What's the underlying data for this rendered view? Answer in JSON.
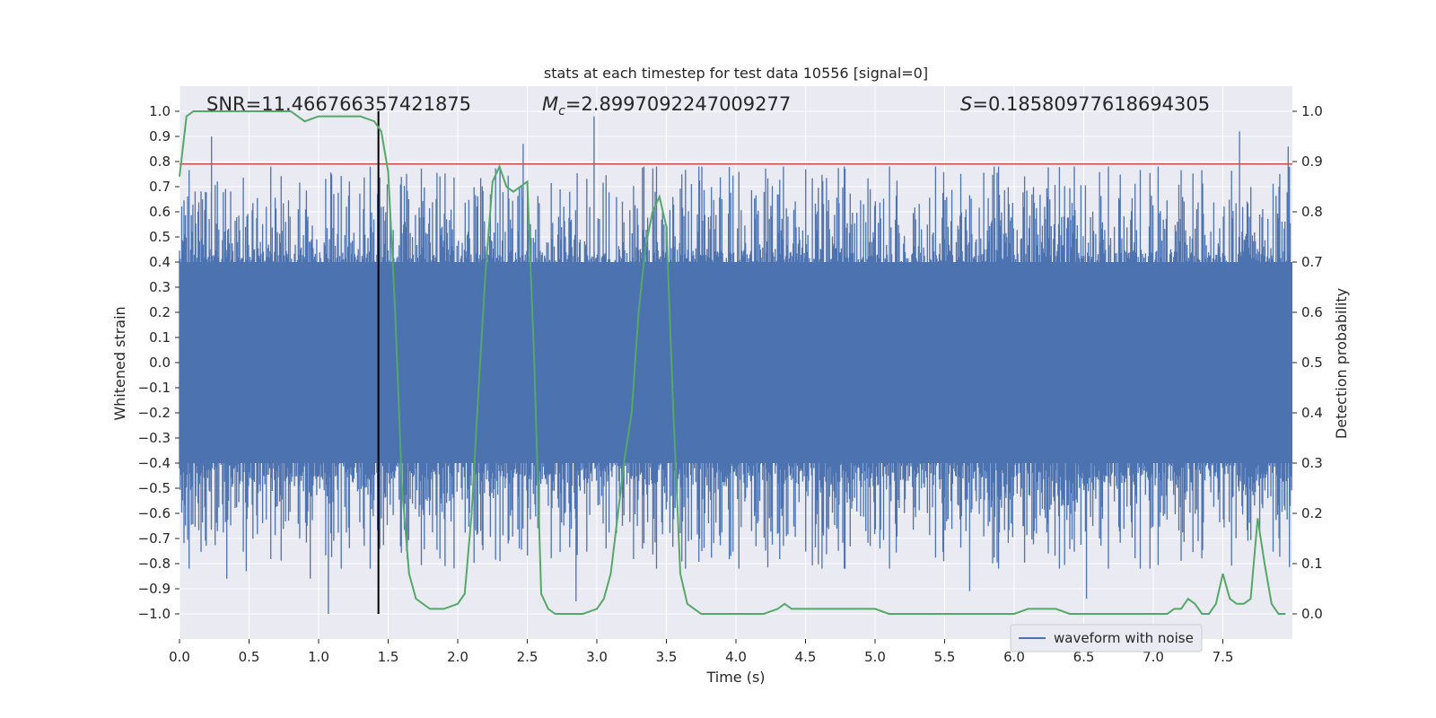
{
  "chart_data": {
    "type": "line",
    "title": "stats at each timestep for test data 10556 [signal=0]",
    "xlabel": "Time (s)",
    "ylabel_left": "Whitened strain",
    "ylabel_right": "Detection probability",
    "xlim": [
      0.0,
      8.0
    ],
    "ylim_left": [
      -1.1,
      1.1
    ],
    "ylim_right": [
      -0.05,
      1.05
    ],
    "grid": true,
    "x_ticks": [
      "0.0",
      "0.5",
      "1.0",
      "1.5",
      "2.0",
      "2.5",
      "3.0",
      "3.5",
      "4.0",
      "4.5",
      "5.0",
      "5.5",
      "6.0",
      "6.5",
      "7.0",
      "7.5"
    ],
    "y_ticks_left": [
      "1.0",
      "0.9",
      "0.8",
      "0.7",
      "0.6",
      "0.5",
      "0.4",
      "0.3",
      "0.2",
      "0.1",
      "0.0",
      "−0.1",
      "−0.2",
      "−0.3",
      "−0.4",
      "−0.5",
      "−0.6",
      "−0.7",
      "−0.8",
      "−0.9",
      "−1.0"
    ],
    "y_ticks_right": [
      "1.0",
      "0.9",
      "0.8",
      "0.7",
      "0.6",
      "0.5",
      "0.4",
      "0.3",
      "0.2",
      "0.1",
      "0.0"
    ],
    "annotations": {
      "snr": "SNR=11.466766357421875",
      "mc_symbol": "M",
      "mc_subscript": "c",
      "mc_value": "=2.8997092247009277",
      "s_symbol": "S",
      "s_value": "=0.18580977618694305"
    },
    "waveform": {
      "name": "waveform with noise",
      "color": "#4c72b0",
      "note_band": [
        -0.4,
        0.4
      ],
      "peaks": [
        {
          "x": 0.23,
          "y": 0.9
        },
        {
          "x": 1.07,
          "y": -1.0
        },
        {
          "x": 2.47,
          "y": 0.87
        },
        {
          "x": 2.98,
          "y": 0.98
        },
        {
          "x": 2.85,
          "y": -0.95
        },
        {
          "x": 7.62,
          "y": 0.92
        },
        {
          "x": 7.97,
          "y": 0.86
        },
        {
          "x": 5.68,
          "y": -0.91
        },
        {
          "x": 6.52,
          "y": -0.94
        },
        {
          "x": 0.34,
          "y": -0.86
        },
        {
          "x": 0.48,
          "y": -0.83
        },
        {
          "x": 0.94,
          "y": -0.86
        }
      ]
    },
    "threshold": {
      "y": 0.79,
      "color": "#c44e52"
    },
    "vertical_marker": {
      "x": 1.43,
      "y_range": [
        -1.0,
        1.0
      ],
      "color": "#000000"
    },
    "probability": {
      "color": "#55a868",
      "x": [
        0.0,
        0.05,
        0.1,
        0.2,
        0.3,
        0.4,
        0.5,
        0.6,
        0.7,
        0.8,
        0.9,
        1.0,
        1.1,
        1.2,
        1.3,
        1.4,
        1.45,
        1.5,
        1.55,
        1.6,
        1.65,
        1.7,
        1.8,
        1.9,
        2.0,
        2.05,
        2.1,
        2.15,
        2.2,
        2.25,
        2.3,
        2.35,
        2.4,
        2.5,
        2.55,
        2.6,
        2.65,
        2.7,
        2.8,
        2.9,
        3.0,
        3.05,
        3.1,
        3.2,
        3.25,
        3.3,
        3.35,
        3.4,
        3.45,
        3.5,
        3.55,
        3.6,
        3.65,
        3.7,
        3.75,
        3.8,
        3.9,
        4.0,
        4.1,
        4.2,
        4.3,
        4.35,
        4.4,
        4.5,
        4.6,
        4.7,
        4.8,
        4.9,
        5.0,
        5.1,
        5.2,
        5.4,
        5.6,
        5.8,
        5.9,
        6.0,
        6.1,
        6.2,
        6.3,
        6.4,
        6.5,
        6.6,
        6.7,
        6.8,
        6.9,
        7.0,
        7.1,
        7.15,
        7.2,
        7.25,
        7.3,
        7.35,
        7.4,
        7.45,
        7.5,
        7.55,
        7.6,
        7.65,
        7.7,
        7.75,
        7.8,
        7.85,
        7.9,
        7.95
      ],
      "y": [
        0.87,
        0.99,
        1.0,
        1.0,
        1.0,
        1.0,
        1.0,
        1.0,
        1.0,
        1.0,
        0.98,
        0.99,
        0.99,
        0.99,
        0.99,
        0.98,
        0.96,
        0.88,
        0.6,
        0.25,
        0.08,
        0.03,
        0.01,
        0.01,
        0.02,
        0.04,
        0.2,
        0.45,
        0.68,
        0.86,
        0.89,
        0.85,
        0.84,
        0.86,
        0.5,
        0.04,
        0.01,
        0.0,
        0.0,
        0.0,
        0.01,
        0.03,
        0.08,
        0.31,
        0.4,
        0.6,
        0.73,
        0.8,
        0.83,
        0.77,
        0.4,
        0.08,
        0.02,
        0.01,
        0.0,
        0.0,
        0.0,
        0.0,
        0.0,
        0.0,
        0.01,
        0.02,
        0.01,
        0.01,
        0.01,
        0.01,
        0.01,
        0.01,
        0.01,
        0.0,
        0.0,
        0.0,
        0.0,
        0.0,
        0.0,
        0.0,
        0.01,
        0.01,
        0.01,
        0.0,
        0.0,
        0.0,
        0.0,
        0.0,
        0.0,
        0.0,
        0.0,
        0.01,
        0.01,
        0.03,
        0.02,
        0.0,
        0.0,
        0.02,
        0.08,
        0.03,
        0.02,
        0.02,
        0.03,
        0.19,
        0.1,
        0.02,
        0.0,
        0.0
      ]
    }
  }
}
